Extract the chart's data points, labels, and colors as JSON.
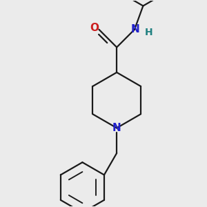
{
  "bg_color": "#ebebeb",
  "line_color": "#1a1a1a",
  "N_color": "#2020cc",
  "O_color": "#cc2020",
  "H_color": "#208080",
  "line_width": 1.6,
  "figsize": [
    3.0,
    3.0
  ],
  "dpi": 100,
  "xlim": [
    -1.4,
    1.0
  ],
  "ylim": [
    -1.6,
    1.5
  ]
}
